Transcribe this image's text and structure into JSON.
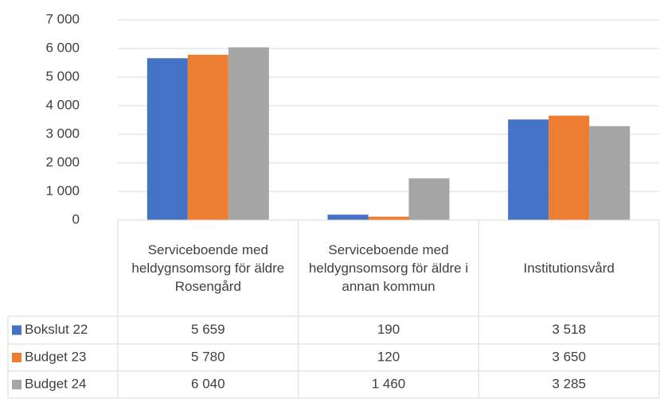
{
  "chart_data": {
    "type": "bar",
    "categories": [
      "Serviceboende med heldygnsomsorg för äldre Rosengård",
      "Serviceboende med heldygnsomsorg för äldre i annan kommun",
      "Institutionsvård"
    ],
    "series": [
      {
        "name": "Bokslut 22",
        "color": "#4472c4",
        "values": [
          5659,
          190,
          3518
        ],
        "value_labels": [
          "5 659",
          "190",
          "3 518"
        ]
      },
      {
        "name": "Budget 23",
        "color": "#ed7d31",
        "values": [
          5780,
          120,
          3650
        ],
        "value_labels": [
          "5 780",
          "120",
          "3 650"
        ]
      },
      {
        "name": "Budget 24",
        "color": "#a5a5a5",
        "values": [
          6040,
          1460,
          3285
        ],
        "value_labels": [
          "6 040",
          "1 460",
          "3 285"
        ]
      }
    ],
    "ylim": [
      0,
      7000
    ],
    "yticks": [
      0,
      {
        "value": 1000,
        "label": "1 000"
      },
      {
        "value": 2000,
        "label": "2 000"
      },
      {
        "value": 3000,
        "label": "3 000"
      },
      {
        "value": 4000,
        "label": "4 000"
      },
      {
        "value": 5000,
        "label": "5 000"
      },
      {
        "value": 6000,
        "label": "6 000"
      },
      {
        "value": 7000,
        "label": "7 000"
      }
    ],
    "grid": true
  }
}
